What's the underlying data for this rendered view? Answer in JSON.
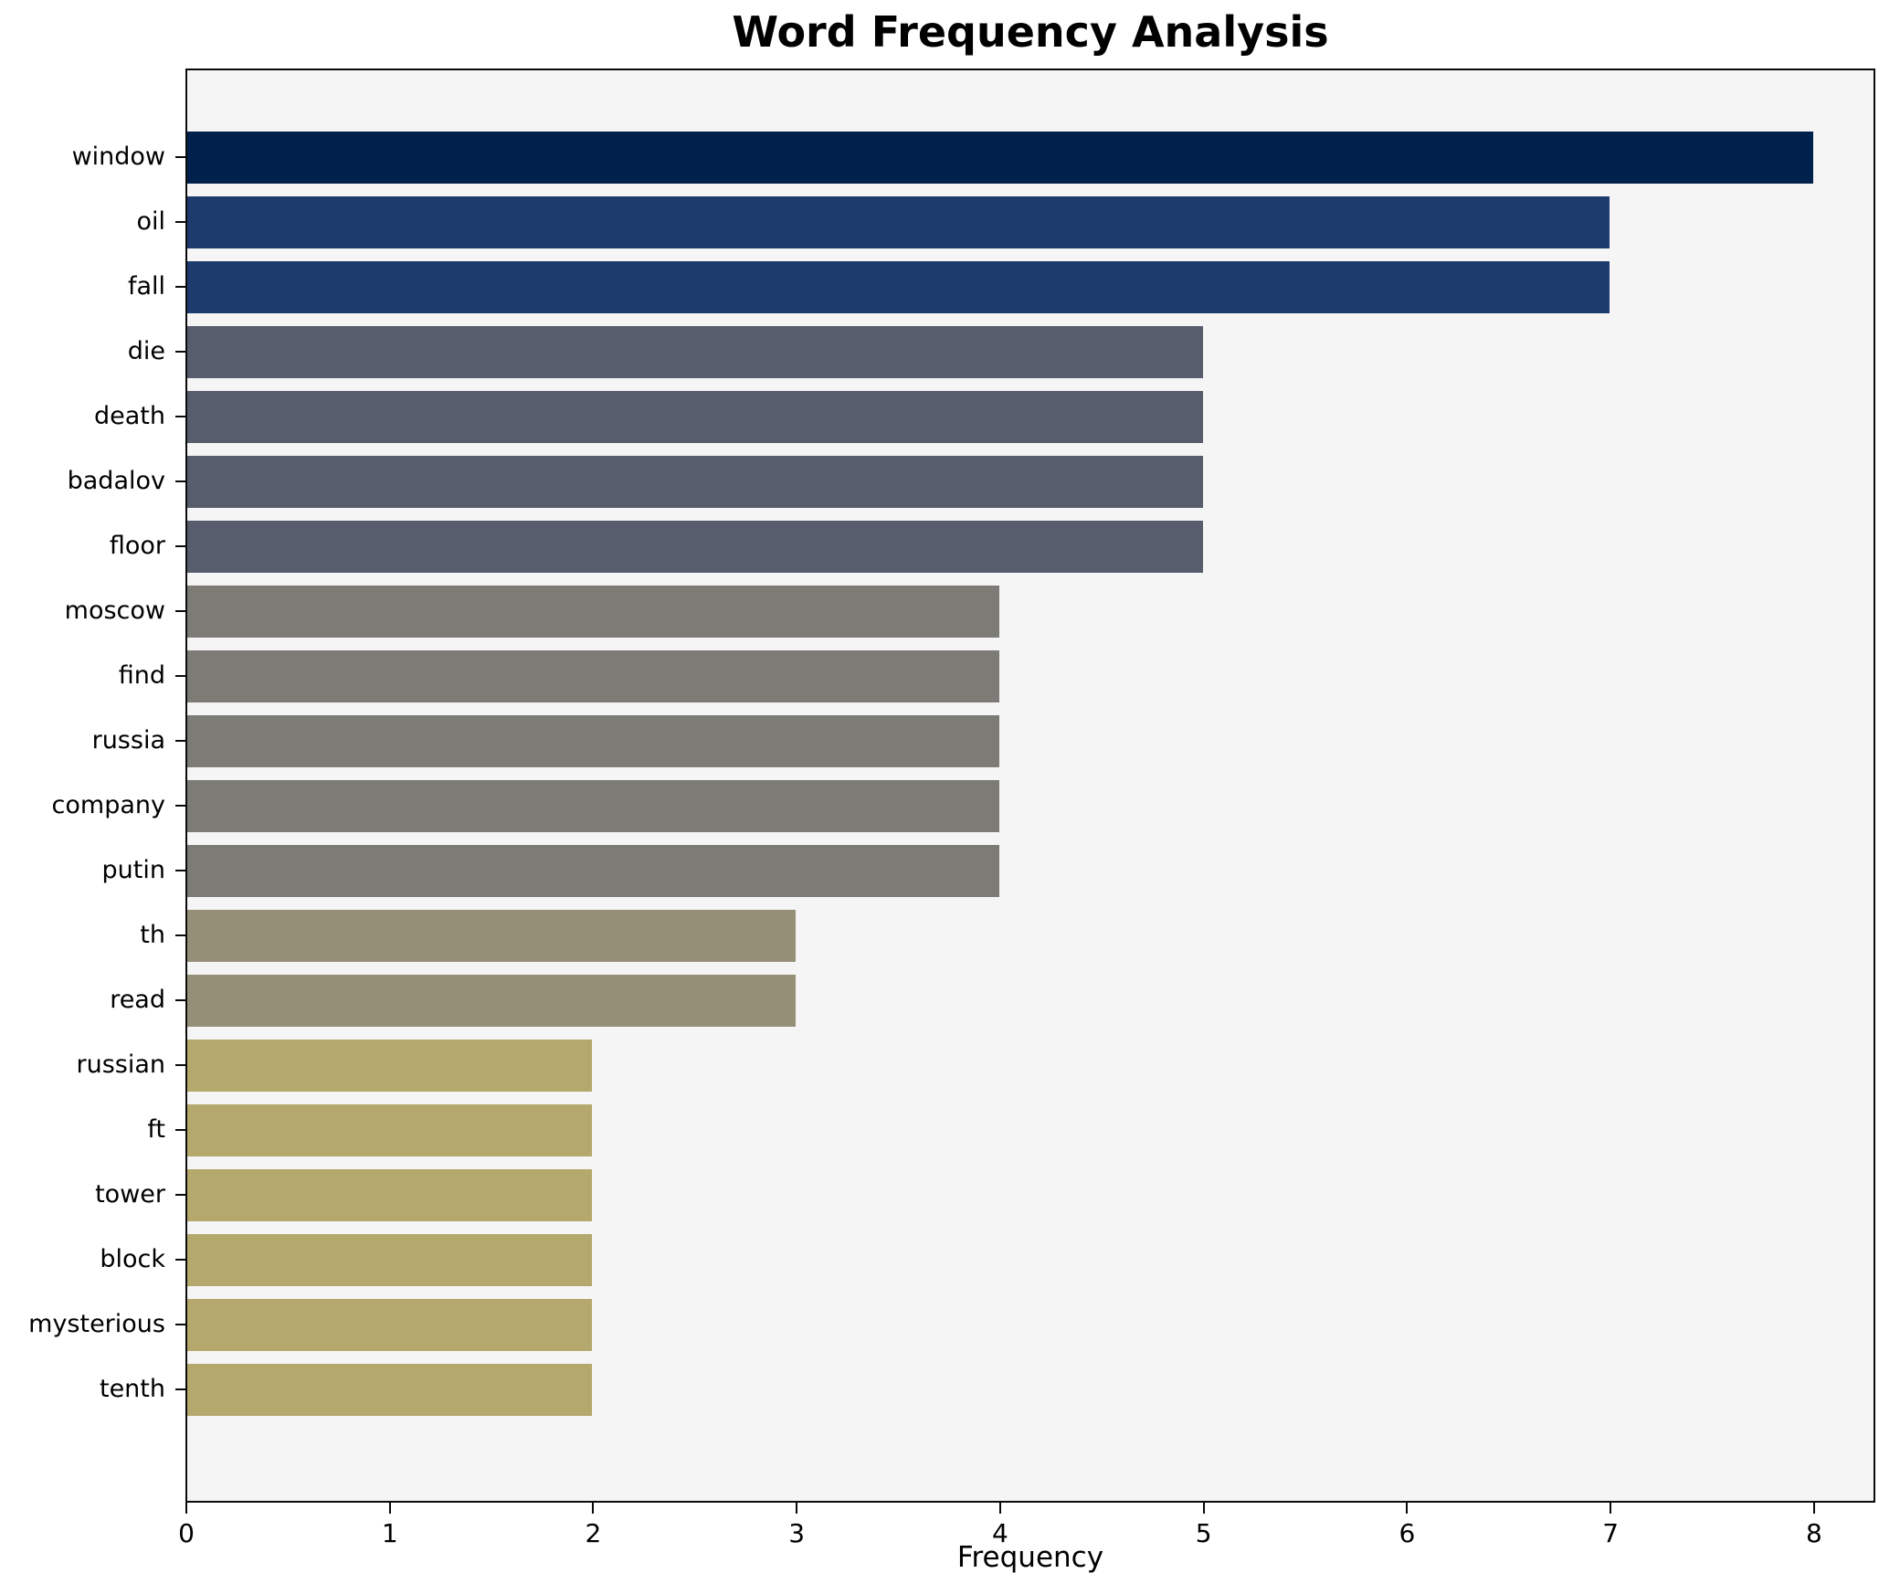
{
  "title": "Word Frequency Analysis",
  "xlabel": "Frequency",
  "chart_data": {
    "type": "bar",
    "orientation": "horizontal",
    "title": "Word Frequency Analysis",
    "xlabel": "Frequency",
    "ylabel": "",
    "categories": [
      "window",
      "oil",
      "fall",
      "die",
      "death",
      "badalov",
      "floor",
      "moscow",
      "find",
      "russia",
      "company",
      "putin",
      "th",
      "read",
      "russian",
      "ft",
      "tower",
      "block",
      "mysterious",
      "tenth"
    ],
    "values": [
      8,
      7,
      7,
      5,
      5,
      5,
      5,
      4,
      4,
      4,
      4,
      4,
      3,
      3,
      2,
      2,
      2,
      2,
      2,
      2
    ],
    "bar_colors": [
      "#01214d",
      "#1d3b6d",
      "#1d3b6d",
      "#575d6d",
      "#575d6d",
      "#575d6d",
      "#575d6d",
      "#7c7b76",
      "#7c7b76",
      "#7c7b76",
      "#7c7b76",
      "#7c7b76",
      "#968f77",
      "#968f77",
      "#b4a86c",
      "#b4a86c",
      "#b4a86c",
      "#b4a86c",
      "#b4a86c",
      "#b4a86c"
    ],
    "x_ticks": [
      "0",
      "1",
      "2",
      "3",
      "4",
      "5",
      "6",
      "7",
      "8"
    ],
    "x_tick_values": [
      0,
      1,
      2,
      3,
      4,
      5,
      6,
      7,
      8
    ],
    "xlim": [
      0,
      8.31
    ],
    "grid": false,
    "legend": null,
    "plot_background": "#f5f5f6",
    "figure_background": "#ffffff",
    "spine_color": "#0a0a0a"
  }
}
